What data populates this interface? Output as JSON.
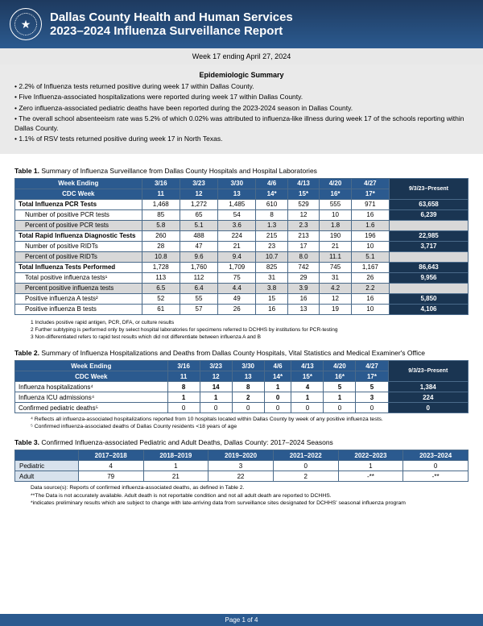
{
  "header": {
    "org": "Dallas County Health and Human Services",
    "title": "2023–2024 Influenza Surveillance Report"
  },
  "subhead": "Week 17 ending April 27, 2024",
  "summary": {
    "title": "Epidemiologic Summary",
    "bullets": [
      "• 2.2% of Influenza tests returned positive during week 17 within Dallas County.",
      "• Five Influenza-associated hospitalizations were reported during week 17 within Dallas County.",
      "• Zero influenza-associated pediatric deaths have been reported during the 2023-2024 season in Dallas County.",
      "• The overall school absenteeism rate was 5.2% of which 0.02% was attributed to influenza-like illness during week 17 of the schools reporting within Dallas County.",
      "• 1.1% of RSV tests returned positive during week 17 in North Texas."
    ]
  },
  "table1": {
    "title_label": "Table 1.",
    "title_rest": " Summary of Influenza Surveillance from Dallas County Hospitals and Hospital Laboratories",
    "head1": [
      "Week Ending",
      "3/16",
      "3/23",
      "3/30",
      "4/6",
      "4/13",
      "4/20",
      "4/27",
      "9/3/23–Present"
    ],
    "head2": [
      "CDC Week",
      "11",
      "12",
      "13",
      "14*",
      "15*",
      "16*",
      "17*"
    ],
    "rows": [
      {
        "style": "bold",
        "cells": [
          "Total Influenza PCR Tests",
          "1,468",
          "1,272",
          "1,485",
          "610",
          "529",
          "555",
          "971",
          "63,658"
        ]
      },
      {
        "style": "reg",
        "cells": [
          "Number of positive PCR tests",
          "85",
          "65",
          "54",
          "8",
          "12",
          "10",
          "16",
          "6,239"
        ]
      },
      {
        "style": "gray",
        "cells": [
          "Percent of positive PCR tests",
          "5.8",
          "5.1",
          "3.6",
          "1.3",
          "2.3",
          "1.8",
          "1.6",
          ""
        ]
      },
      {
        "style": "bold",
        "cells": [
          "Total Rapid Influenza Diagnostic Tests",
          "260",
          "488",
          "224",
          "215",
          "213",
          "190",
          "196",
          "22,985"
        ]
      },
      {
        "style": "reg",
        "cells": [
          "Number of positive RIDTs",
          "28",
          "47",
          "21",
          "23",
          "17",
          "21",
          "10",
          "3,717"
        ]
      },
      {
        "style": "gray",
        "cells": [
          "Percent of positive RIDTs",
          "10.8",
          "9.6",
          "9.4",
          "10.7",
          "8.0",
          "11.1",
          "5.1",
          ""
        ]
      },
      {
        "style": "bold",
        "cells": [
          "Total Influenza Tests Performed",
          "1,728",
          "1,760",
          "1,709",
          "825",
          "742",
          "745",
          "1,167",
          "86,643"
        ]
      },
      {
        "style": "reg",
        "cells": [
          "Total positive influenza tests¹",
          "113",
          "112",
          "75",
          "31",
          "29",
          "31",
          "26",
          "9,956"
        ]
      },
      {
        "style": "gray",
        "cells": [
          "Percent positive influenza tests",
          "6.5",
          "6.4",
          "4.4",
          "3.8",
          "3.9",
          "4.2",
          "2.2",
          ""
        ]
      },
      {
        "style": "reg",
        "cells": [
          "Positive influenza A tests²",
          "52",
          "55",
          "49",
          "15",
          "16",
          "12",
          "16",
          "5,850"
        ]
      },
      {
        "style": "reg",
        "cells": [
          "Positive influenza B tests",
          "61",
          "57",
          "26",
          "16",
          "13",
          "19",
          "10",
          "4,106"
        ]
      }
    ],
    "footnotes": [
      "1 Includes positive rapid antigen, PCR, DFA, or culture results",
      "2 Further subtyping is performed only by select hospital laboratories for specimens referred to DCHHS by institutions for PCR-testing",
      "3 Non-differentiated refers to rapid test results which did not differentiate between influenza A and B"
    ]
  },
  "table2": {
    "title_label": "Table 2.",
    "title_rest": " Summary of Influenza Hospitalizations and Deaths from Dallas County Hospitals, Vital Statistics and Medical Examiner's Office",
    "head1": [
      "Week Ending",
      "3/16",
      "3/23",
      "3/30",
      "4/6",
      "4/13",
      "4/20",
      "4/27",
      "9/3/23–Present"
    ],
    "head2": [
      "CDC Week",
      "11",
      "12",
      "13",
      "14*",
      "15*",
      "16*",
      "17*"
    ],
    "rows": [
      {
        "cells": [
          "Influenza hospitalizations⁴",
          "8",
          "14",
          "8",
          "1",
          "4",
          "5",
          "5",
          "1,384"
        ]
      },
      {
        "cells": [
          "Influenza ICU admissions⁴",
          "1",
          "1",
          "2",
          "0",
          "1",
          "1",
          "3",
          "224"
        ]
      },
      {
        "cells": [
          "Confirmed pediatric deaths⁵",
          "0",
          "0",
          "0",
          "0",
          "0",
          "0",
          "0",
          "0"
        ]
      }
    ],
    "footnotes": [
      "⁴ Reflects all influenza-associated hospitalizations reported from 10 hospitals located within Dallas County by week of any positive influenza tests.",
      "⁵ Confirmed influenza-associated deaths of Dallas County residents <18 years of age"
    ]
  },
  "table3": {
    "title_label": "Table 3.",
    "title_rest": " Confirmed Influenza-associated Pediatric and Adult Deaths, Dallas County: 2017–2024 Seasons",
    "head": [
      "",
      "2017–2018",
      "2018–2019",
      "2019–2020",
      "2021–2022",
      "2022–2023",
      "2023–2024"
    ],
    "rows": [
      [
        "Pediatric",
        "4",
        "1",
        "3",
        "0",
        "1",
        "0"
      ],
      [
        "Adult",
        "79",
        "21",
        "22",
        "2",
        "-**",
        "-**"
      ]
    ],
    "footnotes": [
      "Data source(s): Reports of confirmed influenza-associated deaths, as defined in Table 2.",
      "**The Data is not accurately available. Adult death is not reportable condition and not all adult death are reported to DCHHS.",
      "*indicates preliminary results which are subject to change with late-arriving data from surveillance sites designated for DCHHS' seasonal influenza program"
    ]
  },
  "pagefoot": "Page 1 of 4"
}
